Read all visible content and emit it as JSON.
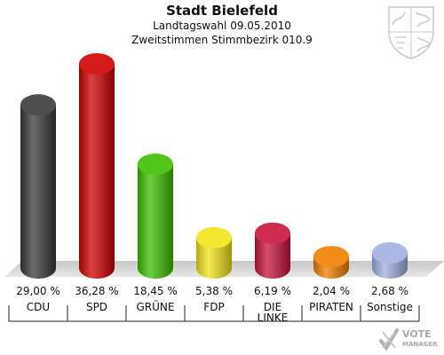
{
  "header": {
    "title": "Stadt Bielefeld",
    "subtitle": "Landtagswahl 09.05.2010",
    "subtitle2": "Zweitstimmen Stimmbezirk 010.9"
  },
  "watermark": {
    "line1": "VOTE",
    "line2": "MANAGER"
  },
  "crest_icon": "nrw-coat-of-arms-icon",
  "chart_data": {
    "type": "bar",
    "categories": [
      "CDU",
      "SPD",
      "GRÜNE",
      "FDP",
      "DIE LINKE",
      "PIRATEN",
      "Sonstige"
    ],
    "values": [
      29.0,
      36.28,
      18.45,
      5.38,
      6.19,
      2.04,
      2.68
    ],
    "value_labels": [
      "29,00 %",
      "36,28 %",
      "18,45 %",
      "5,38 %",
      "6,19 %",
      "2,04 %",
      "2,68 %"
    ],
    "category_labels": [
      [
        "CDU"
      ],
      [
        "SPD"
      ],
      [
        "GRÜNE"
      ],
      [
        "FDP"
      ],
      [
        "DIE",
        "LINKE"
      ],
      [
        "PIRATEN"
      ],
      [
        "Sonstige"
      ]
    ],
    "colors": [
      "#3a3a3a",
      "#d00000",
      "#3cc000",
      "#f2e41a",
      "#c8143c",
      "#f08000",
      "#a0b0e0"
    ],
    "ylim": [
      0,
      36.28
    ],
    "grid": false,
    "legend": "none"
  }
}
